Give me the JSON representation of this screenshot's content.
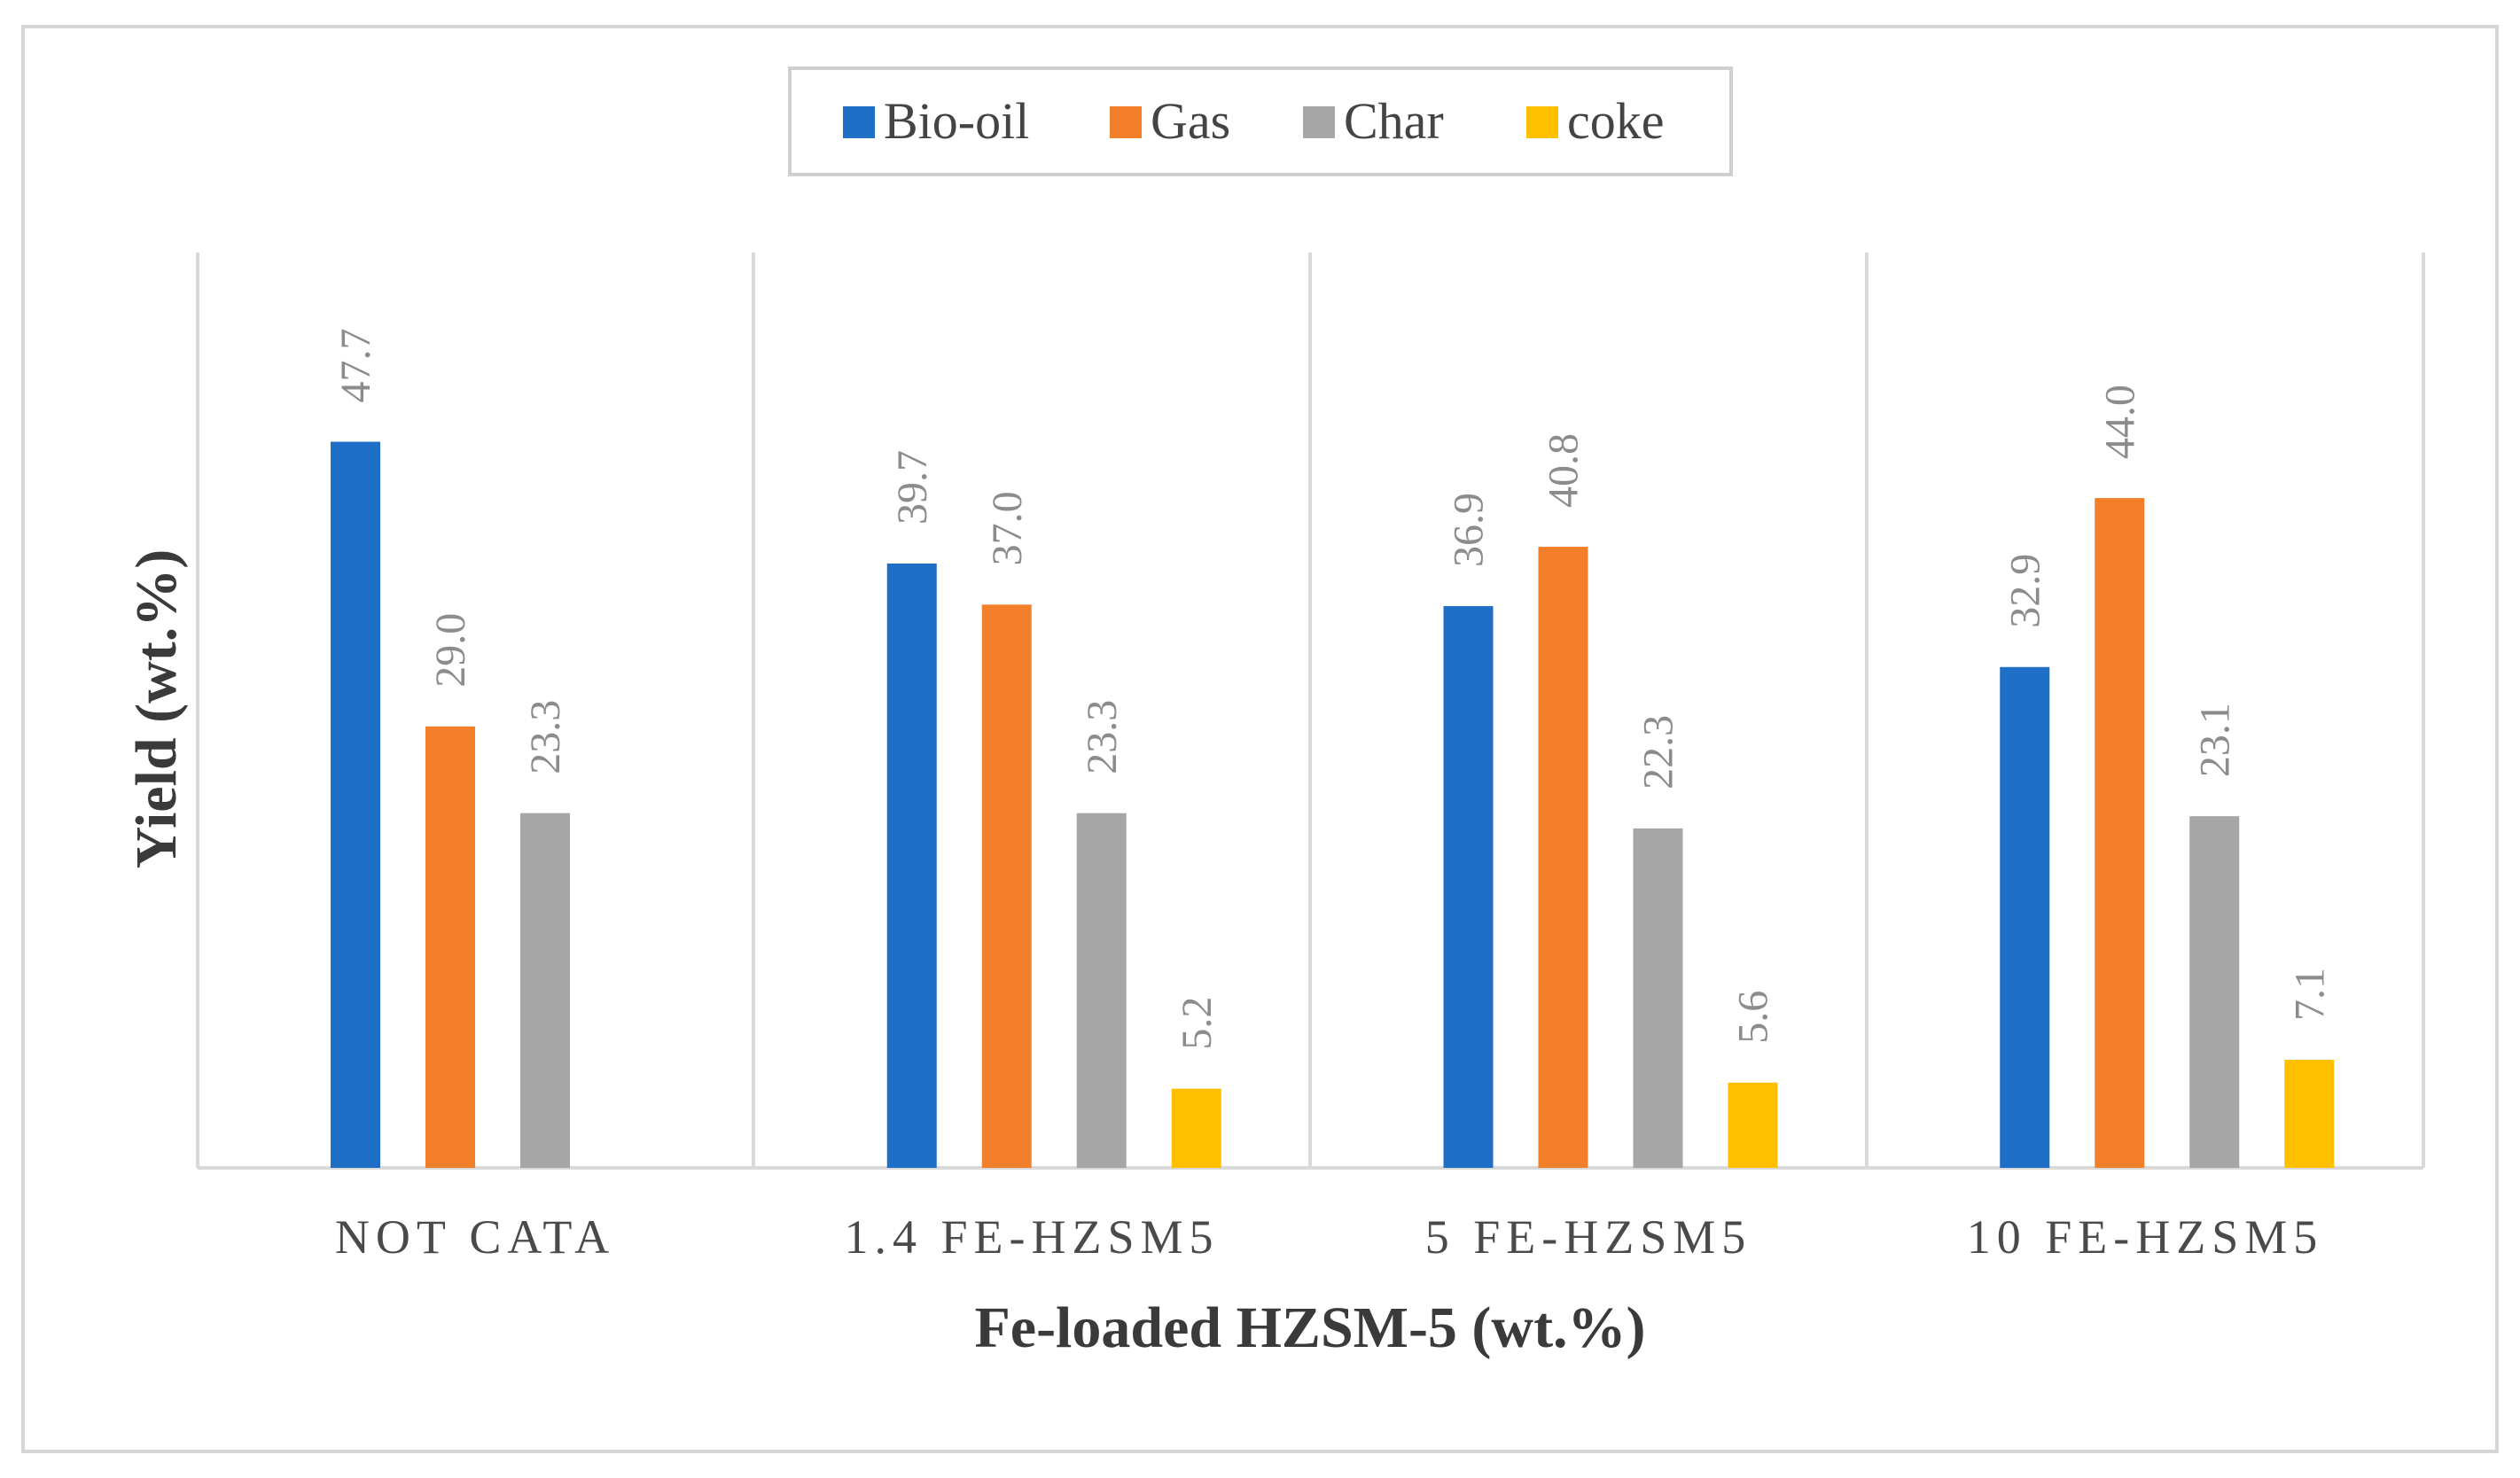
{
  "chart_data": {
    "type": "bar",
    "title": "",
    "xlabel": "Fe-loaded HZSM-5 (wt.%)",
    "ylabel": "Yield (wt.%)",
    "ylim": [
      0,
      50
    ],
    "grid": "vertical separators between category groups",
    "legend_position": "top-center",
    "categories": [
      "NOT CATA",
      "1.4 FE-HZSM5",
      "5 FE-HZSM5",
      "10 FE-HZSM5"
    ],
    "series": [
      {
        "name": "Bio-oil",
        "color": "#1f6fc6",
        "values": [
          47.7,
          39.7,
          36.9,
          32.9
        ],
        "labels": [
          "47.7",
          "39.7",
          "36.9",
          "32.9"
        ]
      },
      {
        "name": "Gas",
        "color": "#f47f2a",
        "values": [
          29.0,
          37.0,
          40.8,
          44.0
        ],
        "labels": [
          "29.0",
          "37.0",
          "40.8",
          "44.0"
        ]
      },
      {
        "name": "Char",
        "color": "#a6a6a6",
        "values": [
          23.3,
          23.3,
          22.3,
          23.1
        ],
        "labels": [
          "23.3",
          "23.3",
          "22.3",
          "23.1"
        ]
      },
      {
        "name": "coke",
        "color": "#ffc000",
        "values": [
          null,
          5.2,
          5.6,
          7.1
        ],
        "labels": [
          null,
          "5.2",
          "5.6",
          "7.1"
        ]
      }
    ]
  }
}
